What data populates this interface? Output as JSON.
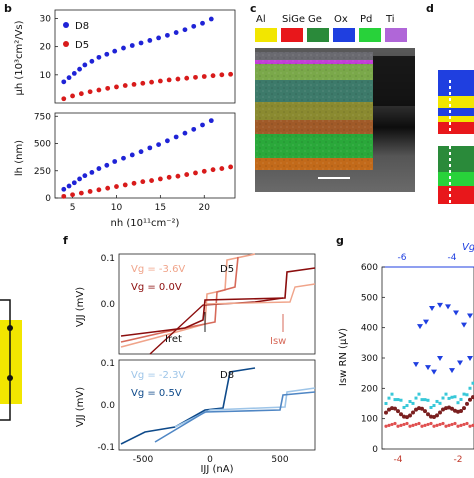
{
  "panel_letters": {
    "b": "b",
    "c": "c",
    "d": "d",
    "f": "f",
    "g": "g"
  },
  "panel_b": {
    "legend": [
      "D8",
      "D5"
    ],
    "colors": {
      "D8": "#1f23d6",
      "D5": "#d81b1b"
    },
    "top": {
      "ylabel": "μh (10³cm²/Vs)",
      "yticks": [
        "10",
        "20",
        "30"
      ],
      "ylim": [
        0,
        33
      ]
    },
    "bottom": {
      "ylabel": "lh (nm)",
      "yticks": [
        "0",
        "250",
        "500",
        "750"
      ],
      "ylim": [
        0,
        780
      ],
      "xticks": [
        "5",
        "10",
        "15",
        "20"
      ],
      "xlabel": "nh (10¹¹cm⁻²)",
      "xlim": [
        3,
        23.5
      ]
    }
  },
  "panel_c": {
    "materials": [
      {
        "name": "Al",
        "color": "#f2e600"
      },
      {
        "name": "SiGe",
        "color": "#e8171b"
      },
      {
        "name": "Ge",
        "color": "#2a8a3a"
      },
      {
        "name": "Ox",
        "color": "#1f3fe0"
      },
      {
        "name": "Pd",
        "color": "#28d23a"
      },
      {
        "name": "Ti",
        "color": "#b066d8"
      }
    ]
  },
  "panel_f": {
    "top": {
      "device": "D5",
      "vg_labels": [
        "Vg = -3.6V",
        "Vg = 0.0V"
      ],
      "annotations": [
        "Iret",
        "Isw"
      ],
      "ylabel": "VJJ (mV)",
      "yticks": [
        "0.0",
        "0.1"
      ],
      "colors": [
        "#f0a48a",
        "#8b0d0d"
      ]
    },
    "bottom": {
      "device": "D8",
      "vg_labels": [
        "Vg = -2.3V",
        "Vg = 0.5V"
      ],
      "ylabel": "VJJ (mV)",
      "yticks": [
        "-0.1",
        "0.0",
        "0.1"
      ],
      "colors": [
        "#9ec5e8",
        "#0e4a8a"
      ]
    },
    "xticks": [
      "-500",
      "0",
      "500"
    ],
    "xlabel": "IJJ (nA)"
  },
  "panel_g": {
    "ylabel": "Isw RN (μV)",
    "yticks": [
      "0",
      "100",
      "200",
      "300",
      "400",
      "500",
      "600"
    ],
    "xticks_bottom": [
      "-4",
      "-2"
    ],
    "xticks_top": [
      "-6",
      "-4"
    ],
    "top_label": "Vg"
  },
  "chart_data": [
    {
      "type": "scatter",
      "xlabel": "nh (10¹¹cm⁻²)",
      "ylabel": "μh (10³cm²/Vs)",
      "ylim": [
        0,
        33
      ],
      "xlim": [
        3,
        23.5
      ],
      "series": [
        {
          "name": "D8",
          "x": [
            4.0,
            4.6,
            5.2,
            5.8,
            6.4,
            7.2,
            8.0,
            8.9,
            9.8,
            10.8,
            11.8,
            12.8,
            13.8,
            14.8,
            15.8,
            16.8,
            17.8,
            18.8,
            19.8,
            20.8
          ],
          "values": [
            7.5,
            9.0,
            10.5,
            12.0,
            13.5,
            14.8,
            16.2,
            17.3,
            18.4,
            19.5,
            20.4,
            21.3,
            22.2,
            23.1,
            24.0,
            25.0,
            26.0,
            27.2,
            28.3,
            29.8
          ]
        },
        {
          "name": "D5",
          "x": [
            4.0,
            5.0,
            6.0,
            7.0,
            8.0,
            9.0,
            10.0,
            11.0,
            12.0,
            13.0,
            14.0,
            15.0,
            16.0,
            17.0,
            18.0,
            19.0,
            20.0,
            21.0,
            22.0,
            23.0
          ],
          "values": [
            1.5,
            2.5,
            3.3,
            4.0,
            4.6,
            5.2,
            5.7,
            6.2,
            6.6,
            7.0,
            7.4,
            7.8,
            8.2,
            8.5,
            8.8,
            9.1,
            9.4,
            9.7,
            10.0,
            10.2
          ]
        }
      ]
    },
    {
      "type": "scatter",
      "xlabel": "nh (10¹¹cm⁻²)",
      "ylabel": "lh (nm)",
      "ylim": [
        0,
        780
      ],
      "xlim": [
        3,
        23.5
      ],
      "series": [
        {
          "name": "D8",
          "x": [
            4.0,
            4.6,
            5.2,
            5.8,
            6.4,
            7.2,
            8.0,
            8.9,
            9.8,
            10.8,
            11.8,
            12.8,
            13.8,
            14.8,
            15.8,
            16.8,
            17.8,
            18.8,
            19.8,
            20.8
          ],
          "values": [
            80,
            110,
            140,
            175,
            205,
            235,
            270,
            300,
            335,
            365,
            395,
            425,
            460,
            490,
            525,
            560,
            595,
            630,
            670,
            710
          ]
        },
        {
          "name": "D5",
          "x": [
            4.0,
            5.0,
            6.0,
            7.0,
            8.0,
            9.0,
            10.0,
            11.0,
            12.0,
            13.0,
            14.0,
            15.0,
            16.0,
            17.0,
            18.0,
            19.0,
            20.0,
            21.0,
            22.0,
            23.0
          ],
          "values": [
            15,
            30,
            45,
            60,
            75,
            90,
            105,
            120,
            135,
            150,
            160,
            175,
            190,
            200,
            215,
            230,
            245,
            260,
            270,
            285
          ]
        }
      ]
    }
  ]
}
